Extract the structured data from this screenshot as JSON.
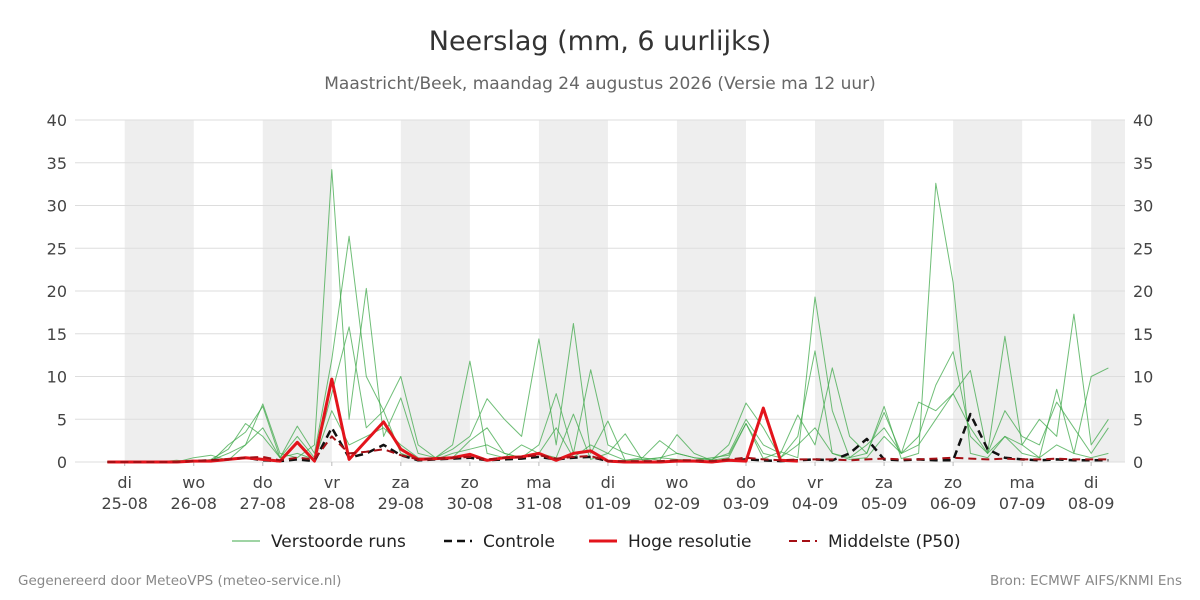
{
  "chart_data": {
    "type": "ensemble-line",
    "title": "Neerslag (mm, 6 uurlijks)",
    "subtitle": "Maastricht/Beek, maandag 24 augustus 2026 (Versie ma 12 uur)",
    "footer_left": "Gegenereerd door MeteoVPS (meteo-service.nl)",
    "footer_right": "Bron: ECMWF AIFS/KNMI Ens",
    "xlim": [
      -0.72,
      14.49
    ],
    "xticks": [
      {
        "value": 0,
        "label": "di\n25-08"
      },
      {
        "value": 1,
        "label": "wo\n26-08"
      },
      {
        "value": 2,
        "label": "do\n27-08"
      },
      {
        "value": 3,
        "label": "vr\n28-08"
      },
      {
        "value": 4,
        "label": "za\n29-08"
      },
      {
        "value": 5,
        "label": "zo\n30-08"
      },
      {
        "value": 6,
        "label": "ma\n31-08"
      },
      {
        "value": 7,
        "label": "di\n01-09"
      },
      {
        "value": 8,
        "label": "wo\n02-09"
      },
      {
        "value": 9,
        "label": "do\n03-09"
      },
      {
        "value": 10,
        "label": "vr\n04-09"
      },
      {
        "value": 11,
        "label": "za\n05-09"
      },
      {
        "value": 12,
        "label": "zo\n06-09"
      },
      {
        "value": 13,
        "label": "ma\n07-09"
      },
      {
        "value": 14,
        "label": "di\n08-09"
      }
    ],
    "ylim": [
      0,
      40
    ],
    "yticks": [
      0,
      5,
      10,
      15,
      20,
      25,
      30,
      35,
      40
    ],
    "grid": true,
    "x": [
      -0.25,
      0,
      0.25,
      0.5,
      0.75,
      1,
      1.25,
      1.5,
      1.75,
      2,
      2.25,
      2.5,
      2.75,
      3,
      3.25,
      3.5,
      3.75,
      4,
      4.25,
      4.5,
      4.75,
      5,
      5.25,
      5.5,
      5.75,
      6,
      6.25,
      6.5,
      6.75,
      7,
      7.25,
      7.5,
      7.75,
      8,
      8.25,
      8.5,
      8.75,
      9,
      9.25,
      9.5,
      9.75,
      10,
      10.25,
      10.5,
      10.75,
      11,
      11.25,
      11.5,
      11.75,
      12,
      12.25,
      12.5,
      12.75,
      13,
      13.25,
      13.5,
      13.75,
      14,
      14.25
    ],
    "series": [
      {
        "name": "Verstoorde runs",
        "color": "#3fa84a",
        "width": 1,
        "dash": false,
        "runs": [
          [
            0,
            0,
            0,
            0,
            0,
            0.5,
            0.8,
            0.2,
            2.0,
            6.8,
            1.0,
            0.5,
            2.0,
            34.2,
            5.0,
            20.3,
            3.0,
            7.5,
            1.0,
            0.5,
            2.0,
            11.8,
            1.0,
            0.5,
            2.0,
            1.0,
            0.5,
            5.6,
            0.3,
            1.0,
            3.3,
            0.2,
            0.5,
            0.3,
            0.2,
            0.5,
            0.8,
            4.5,
            0.4,
            1.2,
            0.5,
            19.3,
            6.0,
            0.5,
            1.0,
            6.5,
            0.4,
            1.0,
            32.6,
            21.0,
            1.0,
            0.5,
            3.0,
            2.0,
            0.5,
            8.5,
            1.0,
            10.0,
            11.0
          ],
          [
            0,
            0,
            0,
            0,
            0,
            0,
            0.3,
            1.5,
            4.5,
            3.0,
            0.5,
            4.2,
            1.0,
            12.0,
            26.4,
            10.0,
            6.0,
            1.0,
            0.3,
            0.5,
            1.5,
            3.0,
            7.4,
            5.0,
            3.0,
            14.4,
            2.0,
            16.2,
            1.0,
            4.8,
            0.2,
            0.5,
            0.2,
            3.2,
            1.0,
            0.2,
            2.0,
            6.9,
            4.0,
            0.5,
            3.0,
            13.0,
            1.0,
            0.3,
            0.5,
            3.0,
            1.0,
            7.0,
            6.0,
            8.0,
            10.7,
            1.0,
            14.7,
            2.0,
            5.0,
            3.0,
            17.3,
            2.0,
            5.0
          ],
          [
            0,
            0,
            0,
            0,
            0.2,
            0,
            0,
            2.0,
            3.5,
            6.5,
            0.5,
            3.0,
            0.5,
            8.0,
            15.8,
            4.0,
            6.0,
            10.0,
            2.0,
            0.5,
            0.5,
            2.5,
            4.0,
            1.0,
            0.5,
            2.0,
            8.0,
            1.0,
            10.8,
            2.0,
            1.0,
            0.5,
            2.5,
            1.0,
            0.5,
            0.3,
            1.0,
            5.0,
            2.0,
            1.0,
            5.5,
            2.0,
            11.0,
            3.0,
            1.0,
            5.8,
            1.0,
            3.0,
            9.0,
            12.9,
            3.0,
            1.0,
            6.0,
            3.0,
            2.0,
            7.0,
            4.0,
            1.0,
            4.0
          ],
          [
            0,
            0,
            0,
            0,
            0,
            0,
            0.2,
            1.0,
            2.0,
            4.0,
            0.5,
            1.0,
            0.3,
            6.0,
            2.0,
            3.0,
            4.0,
            2.0,
            0.5,
            0.3,
            1.0,
            1.5,
            2.0,
            1.0,
            0.5,
            1.0,
            4.0,
            0.5,
            2.0,
            1.0,
            0.2,
            0.3,
            0.5,
            1.0,
            0.5,
            0.2,
            0.5,
            4.5,
            1.0,
            0.5,
            2.0,
            4.0,
            1.0,
            0.5,
            2.0,
            4.0,
            1.0,
            2.0,
            5.0,
            8.0,
            4.0,
            1.0,
            3.0,
            1.0,
            0.5,
            2.0,
            1.0,
            0.5,
            1.0
          ]
        ]
      },
      {
        "name": "Controle",
        "color": "#111111",
        "width": 2.5,
        "dash": true,
        "values": [
          0,
          0,
          0,
          0,
          0,
          0.1,
          0.2,
          0.3,
          0.5,
          0.2,
          0.1,
          0.3,
          0.1,
          4.0,
          0.5,
          1.0,
          2.0,
          0.8,
          0.2,
          0.3,
          0.4,
          0.5,
          0.2,
          0.3,
          0.4,
          0.6,
          0.3,
          0.5,
          0.6,
          0.1,
          0,
          0,
          0,
          0.1,
          0.1,
          0,
          0.2,
          0.3,
          0.2,
          0.1,
          0.2,
          0.3,
          0.2,
          1.0,
          2.7,
          0.3,
          0.2,
          0.3,
          0.2,
          0.2,
          5.6,
          1.5,
          0.5,
          0.3,
          0.2,
          0.3,
          0.2,
          0.2,
          0.2
        ]
      },
      {
        "name": "Hoge resolutie",
        "color": "#e3141c",
        "width": 3,
        "dash": false,
        "values": [
          0,
          0,
          0,
          0,
          0,
          0.1,
          0.1,
          0.3,
          0.5,
          0.3,
          0.1,
          2.3,
          0.1,
          9.7,
          0.3,
          2.5,
          4.7,
          1.5,
          0.3,
          0.4,
          0.5,
          0.9,
          0.2,
          0.5,
          0.6,
          1.0,
          0.2,
          1.0,
          1.3,
          0.1,
          0,
          0,
          0,
          0.1,
          0.1,
          0,
          0.2,
          0.1,
          6.3,
          0.2,
          0.1,
          null,
          null,
          null,
          null,
          null,
          null,
          null,
          null,
          null,
          null,
          null,
          null,
          null,
          null,
          null,
          null,
          null,
          null
        ]
      },
      {
        "name": "Middelste (P50)",
        "color": "#a50f15",
        "width": 2,
        "dash": true,
        "values": [
          0,
          0,
          0,
          0,
          0,
          0.1,
          0.2,
          0.3,
          0.5,
          0.6,
          0.2,
          0.5,
          0.3,
          3.0,
          1.0,
          1.2,
          1.5,
          0.8,
          0.3,
          0.4,
          0.5,
          0.6,
          0.3,
          0.5,
          0.6,
          0.8,
          0.4,
          0.6,
          0.7,
          0.1,
          0.1,
          0.1,
          0.1,
          0.2,
          0.2,
          0.1,
          0.3,
          0.5,
          0.3,
          0.2,
          0.3,
          0.3,
          0.3,
          0.2,
          0.3,
          0.4,
          0.3,
          0.3,
          0.4,
          0.5,
          0.4,
          0.3,
          0.4,
          0.3,
          0.3,
          0.4,
          0.3,
          0.3,
          0.3
        ]
      }
    ]
  }
}
